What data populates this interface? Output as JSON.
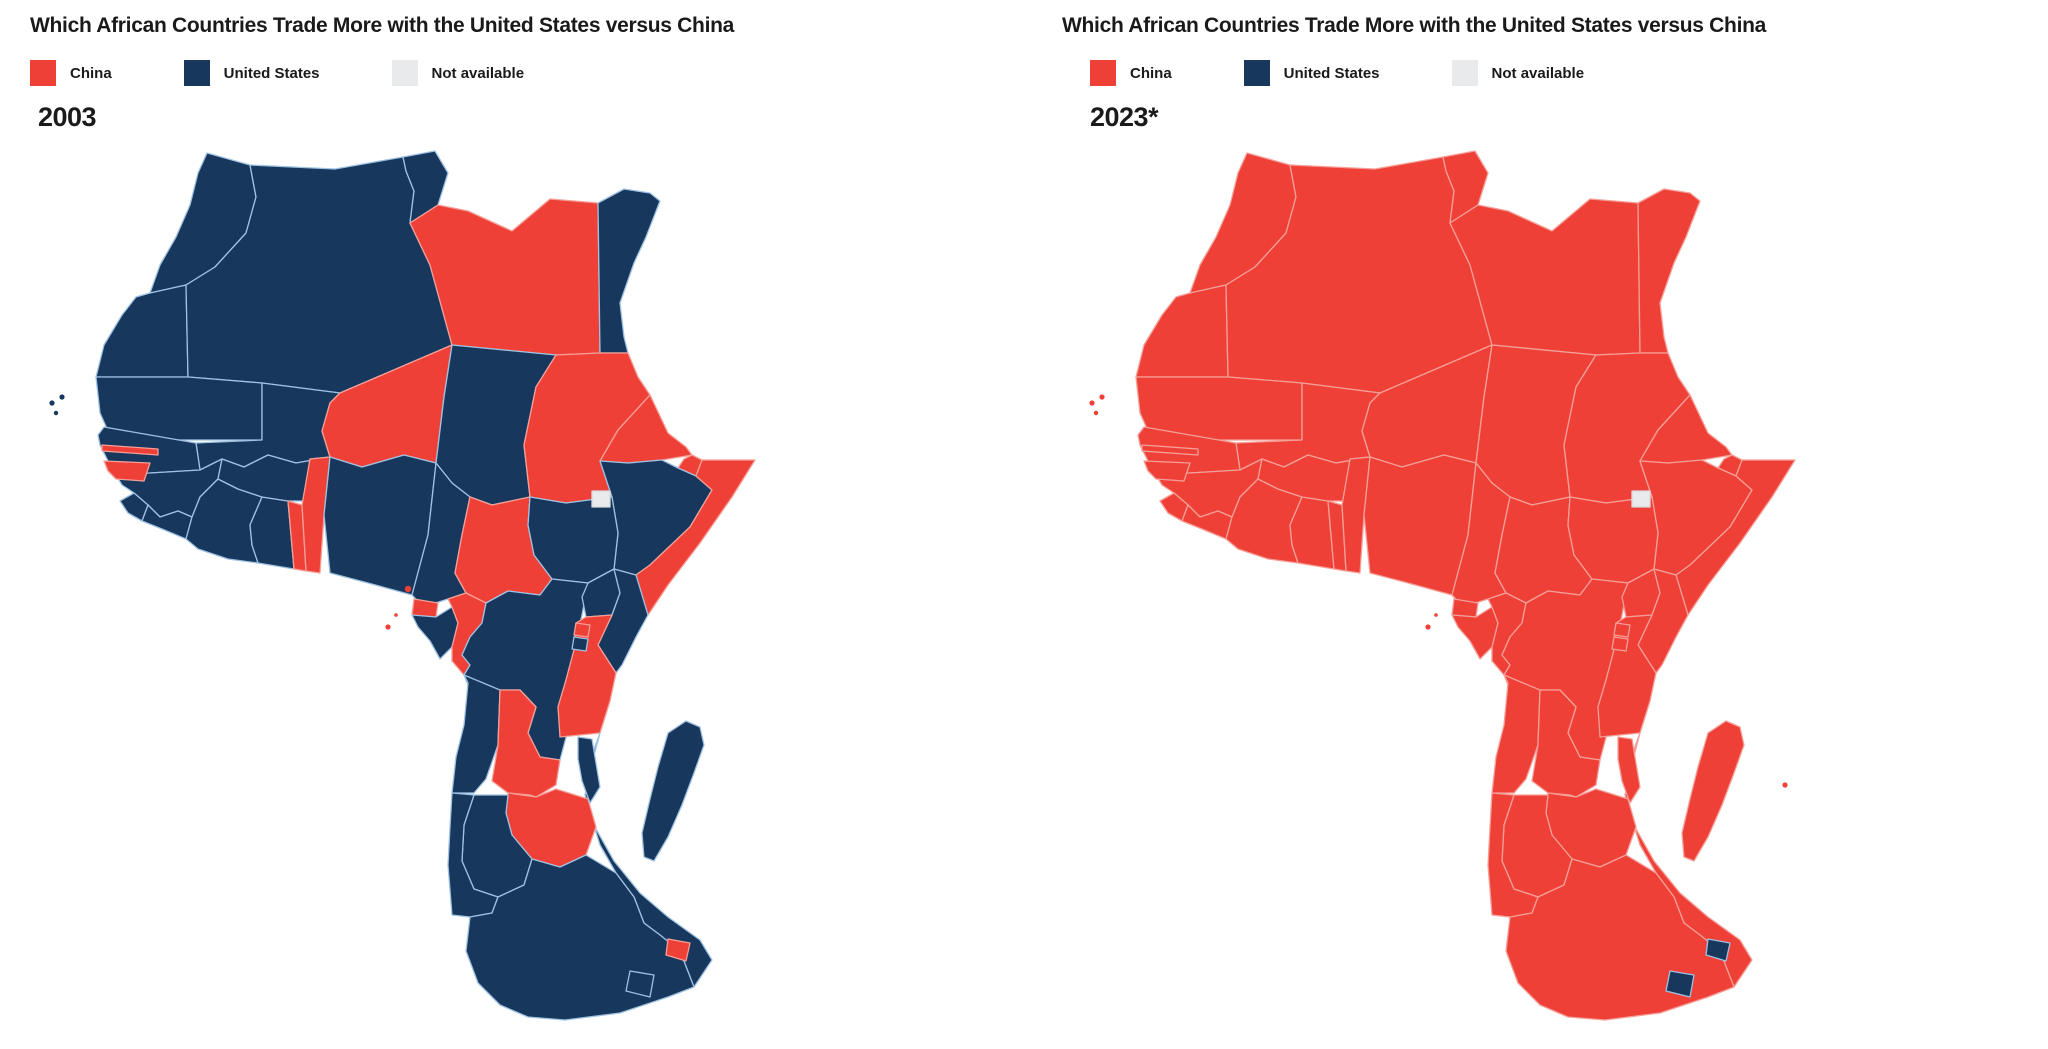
{
  "colors": {
    "china": "#ee4036",
    "us": "#17375c",
    "not_available": "#e8eaec",
    "background": "#ffffff",
    "border_on_us": "#9fc2e2",
    "border_on_china": "#f59f98",
    "border_on_not_available": "#d7dadd",
    "title_text": "#1a1a1a"
  },
  "panels": [
    {
      "title": "Which African Countries Trade More with the United States versus China",
      "year_label": "2003",
      "year_key": "y2003",
      "legend": [
        {
          "label": "China",
          "key": "china"
        },
        {
          "label": "United States",
          "key": "us"
        },
        {
          "label": "Not available",
          "key": "not_available"
        }
      ]
    },
    {
      "title": "Which African Countries Trade More with the United States versus China",
      "year_label": "2023*",
      "year_key": "y2023",
      "legend": [
        {
          "label": "China",
          "key": "china"
        },
        {
          "label": "United States",
          "key": "us"
        },
        {
          "label": "Not available",
          "key": "not_available"
        }
      ]
    }
  ],
  "map_data": {
    "type": "choropleth",
    "region": "Africa",
    "measure": "Larger trading partner (United States vs China)",
    "categories": [
      "China",
      "United States",
      "Not available"
    ],
    "years": [
      "2003",
      "2023*"
    ],
    "countries": [
      {
        "id": "morocco",
        "name": "Morocco",
        "y2003": "us",
        "y2023": "china"
      },
      {
        "id": "western-sahara",
        "name": "Western Sahara",
        "y2003": "us",
        "y2023": "china"
      },
      {
        "id": "algeria",
        "name": "Algeria",
        "y2003": "us",
        "y2023": "china"
      },
      {
        "id": "tunisia",
        "name": "Tunisia",
        "y2003": "us",
        "y2023": "china"
      },
      {
        "id": "libya",
        "name": "Libya",
        "y2003": "china",
        "y2023": "china"
      },
      {
        "id": "egypt",
        "name": "Egypt",
        "y2003": "us",
        "y2023": "china"
      },
      {
        "id": "mauritania",
        "name": "Mauritania",
        "y2003": "us",
        "y2023": "china"
      },
      {
        "id": "mali",
        "name": "Mali",
        "y2003": "us",
        "y2023": "china"
      },
      {
        "id": "niger",
        "name": "Niger",
        "y2003": "china",
        "y2023": "china"
      },
      {
        "id": "chad",
        "name": "Chad",
        "y2003": "us",
        "y2023": "china"
      },
      {
        "id": "sudan",
        "name": "Sudan",
        "y2003": "china",
        "y2023": "china"
      },
      {
        "id": "eritrea",
        "name": "Eritrea",
        "y2003": "china",
        "y2023": "china"
      },
      {
        "id": "djibouti",
        "name": "Djibouti",
        "y2003": "china",
        "y2023": "china"
      },
      {
        "id": "ethiopia",
        "name": "Ethiopia",
        "y2003": "us",
        "y2023": "china"
      },
      {
        "id": "somalia",
        "name": "Somalia",
        "y2003": "china",
        "y2023": "china"
      },
      {
        "id": "senegal",
        "name": "Senegal",
        "y2003": "us",
        "y2023": "china"
      },
      {
        "id": "guinea",
        "name": "Guinea",
        "y2003": "us",
        "y2023": "china"
      },
      {
        "id": "sierra-leone",
        "name": "Sierra Leone",
        "y2003": "us",
        "y2023": "china"
      },
      {
        "id": "liberia",
        "name": "Liberia",
        "y2003": "us",
        "y2023": "china"
      },
      {
        "id": "cote-divoire",
        "name": "Côte d'Ivoire",
        "y2003": "us",
        "y2023": "china"
      },
      {
        "id": "ghana",
        "name": "Ghana",
        "y2003": "us",
        "y2023": "china"
      },
      {
        "id": "burkina-faso",
        "name": "Burkina Faso",
        "y2003": "us",
        "y2023": "china"
      },
      {
        "id": "togo",
        "name": "Togo",
        "y2003": "china",
        "y2023": "china"
      },
      {
        "id": "benin",
        "name": "Benin",
        "y2003": "china",
        "y2023": "china"
      },
      {
        "id": "nigeria",
        "name": "Nigeria",
        "y2003": "us",
        "y2023": "china"
      },
      {
        "id": "cameroon",
        "name": "Cameroon",
        "y2003": "us",
        "y2023": "china"
      },
      {
        "id": "central-african-republic",
        "name": "Central African Republic",
        "y2003": "china",
        "y2023": "china"
      },
      {
        "id": "south-sudan",
        "name": "South Sudan",
        "y2003": "us",
        "y2023": "china"
      },
      {
        "id": "equatorial-guinea",
        "name": "Equatorial Guinea",
        "y2003": "china",
        "y2023": "china"
      },
      {
        "id": "gabon",
        "name": "Gabon",
        "y2003": "us",
        "y2023": "china"
      },
      {
        "id": "congo",
        "name": "Congo (Rep.)",
        "y2003": "china",
        "y2023": "china"
      },
      {
        "id": "drc",
        "name": "Congo (Dem. Rep.)",
        "y2003": "us",
        "y2023": "china"
      },
      {
        "id": "uganda",
        "name": "Uganda",
        "y2003": "us",
        "y2023": "china"
      },
      {
        "id": "kenya",
        "name": "Kenya",
        "y2003": "us",
        "y2023": "china"
      },
      {
        "id": "tanzania",
        "name": "Tanzania",
        "y2003": "china",
        "y2023": "china"
      },
      {
        "id": "rwanda",
        "name": "Rwanda",
        "y2003": "china",
        "y2023": "china"
      },
      {
        "id": "burundi",
        "name": "Burundi",
        "y2003": "us",
        "y2023": "china"
      },
      {
        "id": "angola",
        "name": "Angola",
        "y2003": "us",
        "y2023": "china"
      },
      {
        "id": "zambia",
        "name": "Zambia",
        "y2003": "china",
        "y2023": "china"
      },
      {
        "id": "mozambique",
        "name": "Mozambique",
        "y2003": "us",
        "y2023": "china"
      },
      {
        "id": "zimbabwe",
        "name": "Zimbabwe",
        "y2003": "china",
        "y2023": "china"
      },
      {
        "id": "botswana",
        "name": "Botswana",
        "y2003": "us",
        "y2023": "china"
      },
      {
        "id": "namibia",
        "name": "Namibia",
        "y2003": "us",
        "y2023": "china"
      },
      {
        "id": "south-africa",
        "name": "South Africa",
        "y2003": "us",
        "y2023": "china"
      },
      {
        "id": "malawi",
        "name": "Malawi",
        "y2003": "us",
        "y2023": "china"
      },
      {
        "id": "lesotho",
        "name": "Lesotho",
        "y2003": "us",
        "y2023": "us"
      },
      {
        "id": "eswatini",
        "name": "Eswatini",
        "y2003": "china",
        "y2023": "us"
      },
      {
        "id": "madagascar",
        "name": "Madagascar",
        "y2003": "us",
        "y2023": "china"
      },
      {
        "id": "senegal-gambia",
        "name": "Gambia",
        "y2003": "china",
        "y2023": "china"
      },
      {
        "id": "guinea-bissau",
        "name": "Guinea-Bissau",
        "y2003": "china",
        "y2023": "china"
      },
      {
        "id": "abyei",
        "name": "Abyei (disputed)",
        "y2003": "not_available",
        "y2023": "not_available"
      },
      {
        "id": "cape-verde",
        "name": "Cabo Verde",
        "y2003": "us",
        "y2023": "china"
      },
      {
        "id": "sao-tome-and-principe",
        "name": "São Tomé and Príncipe",
        "y2003": "china",
        "y2023": "china"
      },
      {
        "id": "mauritius",
        "name": "Mauritius",
        "y2003": null,
        "y2023": "china"
      }
    ]
  }
}
